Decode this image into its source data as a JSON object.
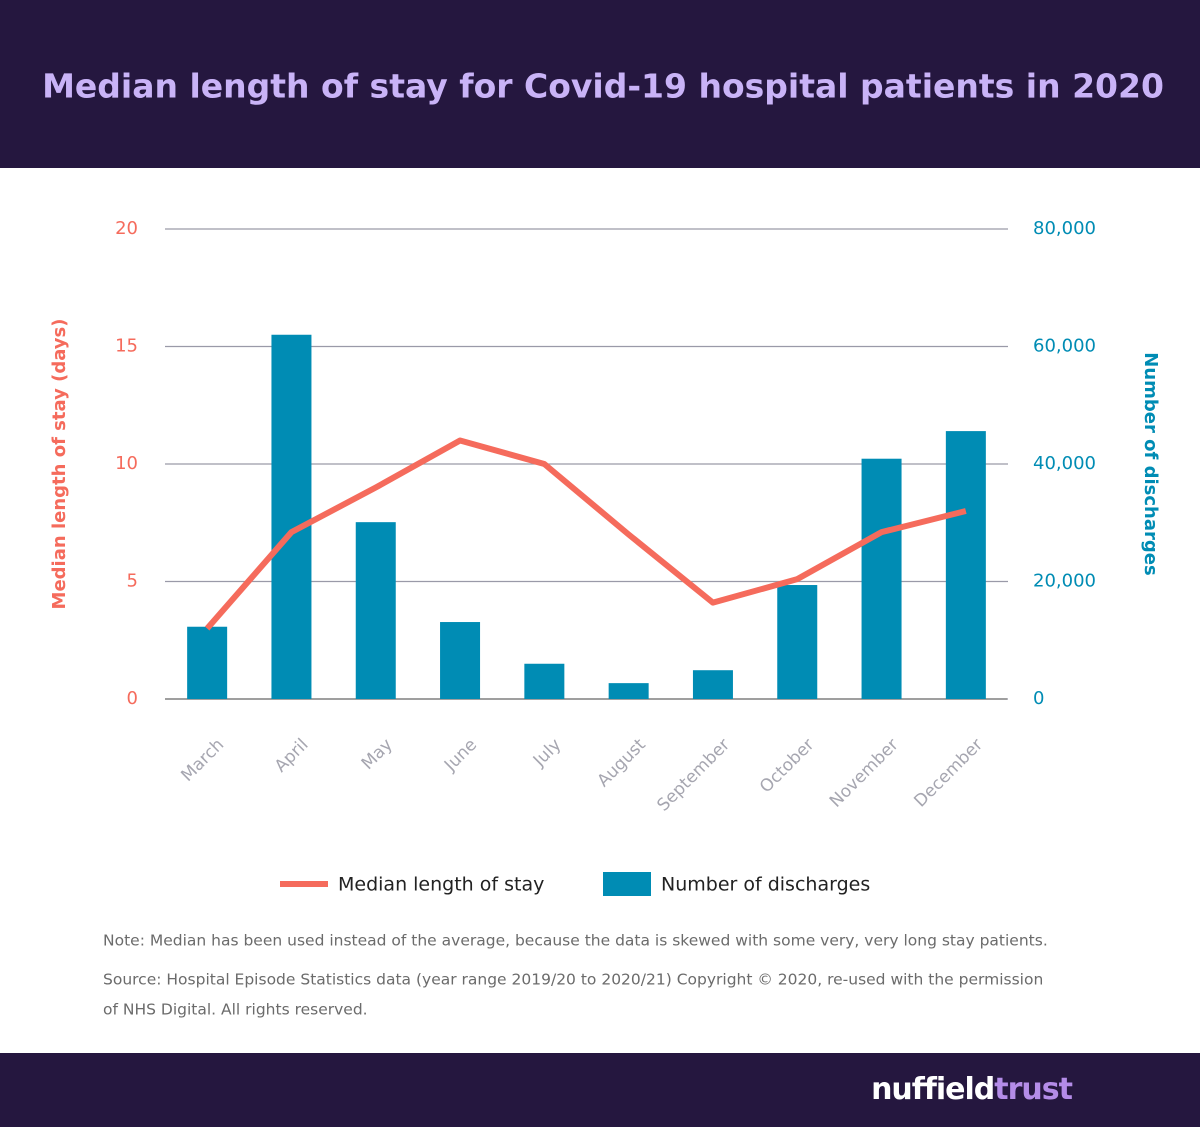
{
  "chart_data": {
    "type": "bar+line",
    "title": "Median length of stay for Covid-19 hospital patients in 2020",
    "categories": [
      "March",
      "April",
      "May",
      "June",
      "July",
      "August",
      "September",
      "October",
      "November",
      "December"
    ],
    "series": [
      {
        "name": "Median length of stay",
        "type": "line",
        "color": "#f56b5c",
        "axis": "y",
        "values": [
          3,
          7.1,
          9,
          11,
          10,
          7,
          4.1,
          5.1,
          7.1,
          8
        ]
      },
      {
        "name": "Number of discharges",
        "type": "bar",
        "color": "#008cb4",
        "axis": "y2",
        "values": [
          12300,
          62000,
          30100,
          13100,
          6000,
          2700,
          4900,
          19400,
          40900,
          45600
        ]
      }
    ],
    "ylabel": "Median length of stay (days)",
    "y2label": "Number of discharges",
    "ylim": [
      0,
      20
    ],
    "yticks": [
      0,
      5,
      10,
      15,
      20
    ],
    "y2lim": [
      0,
      80000
    ],
    "y2ticks": [
      0,
      {
        "value": 20000,
        "label": "20,000"
      },
      {
        "value": 40000,
        "label": "40,000"
      },
      {
        "value": 60000,
        "label": "60,000"
      },
      {
        "value": 80000,
        "label": "80,000"
      }
    ],
    "grid": true,
    "legend": "bottom",
    "note": "Note: Median has been used instead of the average, because the data is skewed with some very, very long stay patients.",
    "source": [
      "Source: Hospital Episode Statistics data (year range 2019/20 to 2020/21) Copyright © 2020, re-used with the permission",
      "of NHS Digital. All rights reserved."
    ]
  },
  "logo": [
    "nuffield",
    "trust"
  ]
}
